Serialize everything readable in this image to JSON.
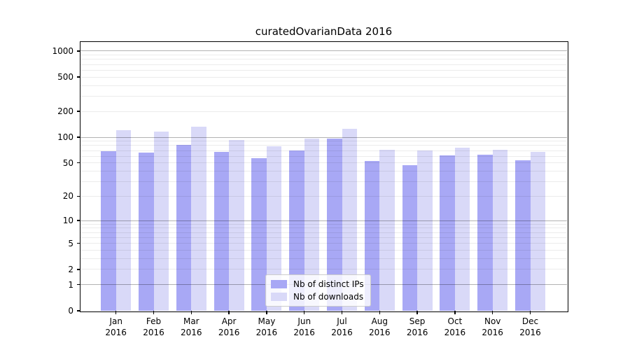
{
  "chart_data": {
    "type": "bar",
    "title": "curatedOvarianData 2016",
    "yscale": "log1p",
    "ylim": [
      0,
      1271
    ],
    "yticks": [
      0,
      1,
      2,
      5,
      10,
      20,
      50,
      100,
      200,
      500,
      1000
    ],
    "major_gridlines": [
      1,
      10,
      100,
      1000
    ],
    "minor_gridlines": [
      2,
      3,
      4,
      5,
      6,
      7,
      8,
      9,
      20,
      30,
      40,
      50,
      60,
      70,
      80,
      90,
      200,
      300,
      400,
      500,
      600,
      700,
      800,
      900
    ],
    "grid": true,
    "categories": [
      "Jan",
      "Feb",
      "Mar",
      "Apr",
      "May",
      "Jun",
      "Jul",
      "Aug",
      "Sep",
      "Oct",
      "Nov",
      "Dec"
    ],
    "category_year": "2016",
    "series": [
      {
        "name": "Nb of distinct IPs",
        "color": "#a8a8f5",
        "values": [
          69,
          66,
          81,
          67,
          57,
          70,
          97,
          53,
          47,
          61,
          62,
          54
        ]
      },
      {
        "name": "Nb of downloads",
        "color": "#d9d9f8",
        "values": [
          121,
          117,
          133,
          93,
          79,
          97,
          125,
          71,
          70,
          75,
          72,
          67
        ]
      }
    ],
    "legend_position": "bottom-center"
  },
  "colors": {
    "bar_distinct_ips": "#a8a8f5",
    "bar_downloads": "#d9d9f8",
    "major_grid": "#b3b3b3",
    "minor_grid": "#ebebeb",
    "axis": "#000000",
    "background": "#ffffff"
  }
}
